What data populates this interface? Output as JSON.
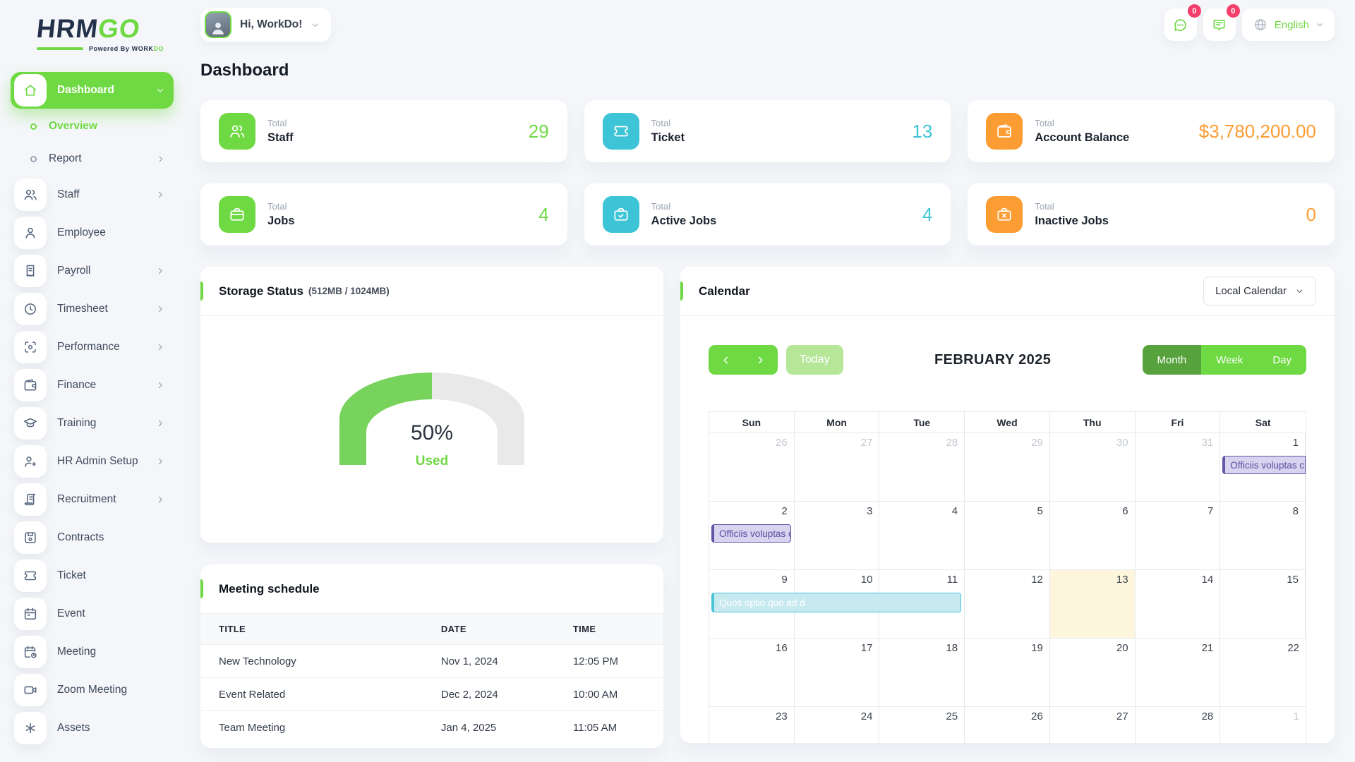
{
  "brand": {
    "logo_hrm": "HRM",
    "logo_go": "GO",
    "powered_prefix": "Powered By",
    "powered_work": "WORK",
    "powered_do": "DO"
  },
  "topbar": {
    "greeting": "Hi, WorkDo!",
    "language": "English",
    "chat_badge": "0",
    "notification_badge": "0"
  },
  "page_title": "Dashboard",
  "colors": {
    "primary_green": "#6fd943",
    "active_view_green": "#57a23d",
    "today_button_green": "#b6e698",
    "cyan": "#3dc4d6",
    "orange": "#fb9d33",
    "badge_pink": "#f43f6b",
    "gauge_green": "#77d35c",
    "gauge_track": "#e9e9e9"
  },
  "sidebar": {
    "items": [
      {
        "label": "Dashboard",
        "icon": "home-icon",
        "type": "group",
        "active": true,
        "expanded": true
      },
      {
        "label": "Overview",
        "icon": "bullet-icon",
        "type": "sub",
        "active_sub": true
      },
      {
        "label": "Report",
        "icon": "bullet-icon",
        "type": "sub",
        "chevron": true
      },
      {
        "label": "Staff",
        "icon": "users-icon",
        "chevron": true
      },
      {
        "label": "Employee",
        "icon": "user-icon"
      },
      {
        "label": "Payroll",
        "icon": "receipt-icon",
        "chevron": true
      },
      {
        "label": "Timesheet",
        "icon": "clock-icon",
        "chevron": true
      },
      {
        "label": "Performance",
        "icon": "target-icon",
        "chevron": true
      },
      {
        "label": "Finance",
        "icon": "wallet-icon",
        "chevron": true
      },
      {
        "label": "Training",
        "icon": "graduation-icon",
        "chevron": true
      },
      {
        "label": "HR Admin Setup",
        "icon": "user-plus-icon",
        "chevron": true
      },
      {
        "label": "Recruitment",
        "icon": "scroll-icon",
        "chevron": true
      },
      {
        "label": "Contracts",
        "icon": "save-icon"
      },
      {
        "label": "Ticket",
        "icon": "ticket-icon"
      },
      {
        "label": "Event",
        "icon": "calendar-icon"
      },
      {
        "label": "Meeting",
        "icon": "calendar-clock-icon"
      },
      {
        "label": "Zoom Meeting",
        "icon": "video-icon"
      },
      {
        "label": "Assets",
        "icon": "asterisk-icon"
      }
    ]
  },
  "stat_cards": [
    {
      "label_top": "Total",
      "label": "Staff",
      "value": "29",
      "accent": "#6fd943",
      "icon": "staff-icon"
    },
    {
      "label_top": "Total",
      "label": "Ticket",
      "value": "13",
      "accent": "#3dc4d6",
      "icon": "ticket-icon"
    },
    {
      "label_top": "Total",
      "label": "Account Balance",
      "value": "$3,780,200.00",
      "accent": "#fb9d33",
      "icon": "wallet-icon"
    },
    {
      "label_top": "Total",
      "label": "Jobs",
      "value": "4",
      "accent": "#6fd943",
      "icon": "briefcase-icon"
    },
    {
      "label_top": "Total",
      "label": "Active Jobs",
      "value": "4",
      "accent": "#3dc4d6",
      "icon": "briefcase-check-icon"
    },
    {
      "label_top": "Total",
      "label": "Inactive Jobs",
      "value": "0",
      "accent": "#fb9d33",
      "icon": "briefcase-x-icon"
    }
  ],
  "storage": {
    "title": "Storage Status",
    "subtitle": "(512MB / 1024MB)",
    "percent": 50,
    "percent_label": "50%",
    "used_label": "Used"
  },
  "calendar": {
    "title": "Calendar",
    "source": "Local Calendar",
    "today_label": "Today",
    "month_title": "FEBRUARY 2025",
    "views": [
      "Month",
      "Week",
      "Day"
    ],
    "active_view": "Month",
    "weekdays": [
      "Sun",
      "Mon",
      "Tue",
      "Wed",
      "Thu",
      "Fri",
      "Sat"
    ],
    "weeks": [
      [
        {
          "d": "26",
          "muted": true
        },
        {
          "d": "27",
          "muted": true
        },
        {
          "d": "28",
          "muted": true
        },
        {
          "d": "29",
          "muted": true
        },
        {
          "d": "30",
          "muted": true
        },
        {
          "d": "31",
          "muted": true
        },
        {
          "d": "1"
        }
      ],
      [
        {
          "d": "2"
        },
        {
          "d": "3"
        },
        {
          "d": "4"
        },
        {
          "d": "5"
        },
        {
          "d": "6"
        },
        {
          "d": "7"
        },
        {
          "d": "8"
        }
      ],
      [
        {
          "d": "9"
        },
        {
          "d": "10"
        },
        {
          "d": "11"
        },
        {
          "d": "12"
        },
        {
          "d": "13",
          "today": true
        },
        {
          "d": "14"
        },
        {
          "d": "15"
        }
      ],
      [
        {
          "d": "16"
        },
        {
          "d": "17"
        },
        {
          "d": "18"
        },
        {
          "d": "19"
        },
        {
          "d": "20"
        },
        {
          "d": "21"
        },
        {
          "d": "22"
        }
      ],
      [
        {
          "d": "23"
        },
        {
          "d": "24"
        },
        {
          "d": "25"
        },
        {
          "d": "26"
        },
        {
          "d": "27"
        },
        {
          "d": "28"
        },
        {
          "d": "1",
          "muted": true
        }
      ]
    ],
    "events": [
      {
        "text": "Officiis voluptas c",
        "week": 0,
        "col": 6,
        "span": 1,
        "style": "purple",
        "continues": true
      },
      {
        "text": "Officiis voluptas c",
        "week": 1,
        "col": 0,
        "span": 1,
        "style": "purple"
      },
      {
        "text": "Quos optio quo ad d",
        "week": 2,
        "col": 0,
        "span": 3,
        "style": "cyan"
      }
    ],
    "event_colors": {
      "purple_bg": "#d9d3f0",
      "purple_border": "#6157a6",
      "purple_text": "#564d9f",
      "cyan_bg": "#c7e9f0",
      "cyan_border": "#49c5d8",
      "cyan_text": "#ffffff",
      "today_bg": "#fdf6dd"
    }
  },
  "meetings": {
    "title": "Meeting schedule",
    "columns": [
      "TITLE",
      "DATE",
      "TIME"
    ],
    "rows": [
      {
        "title": "New Technology",
        "date": "Nov 1, 2024",
        "time": "12:05 PM"
      },
      {
        "title": "Event Related",
        "date": "Dec 2, 2024",
        "time": "10:00 AM"
      },
      {
        "title": "Team Meeting",
        "date": "Jan 4, 2025",
        "time": "11:05 AM"
      }
    ]
  }
}
